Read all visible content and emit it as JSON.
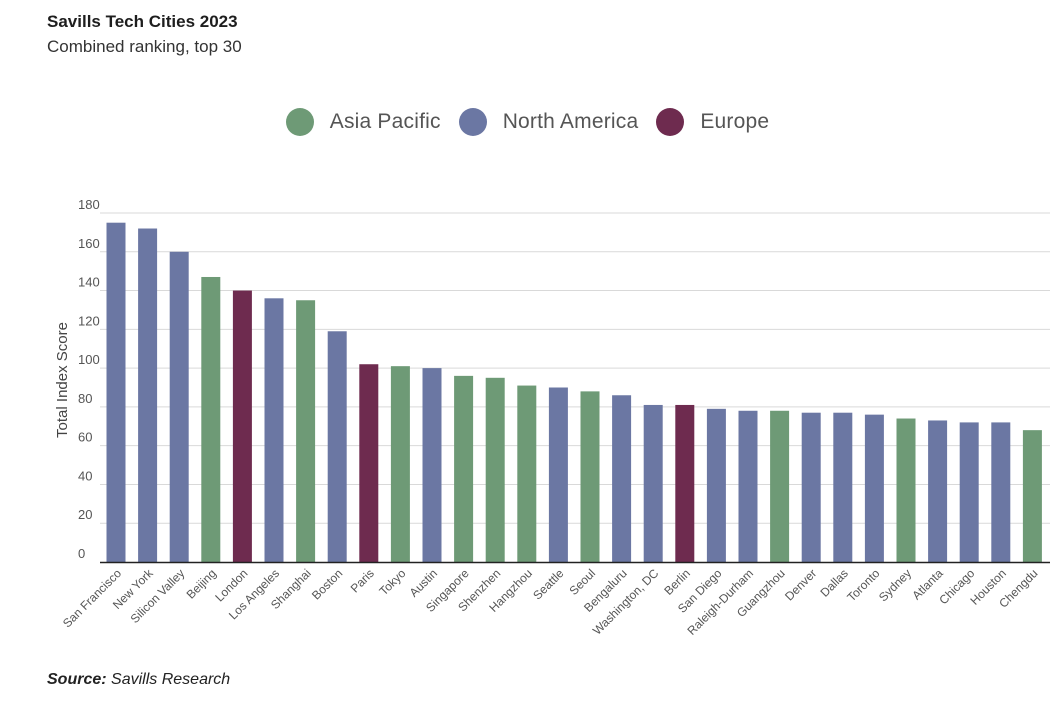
{
  "header": {
    "title": "Savills Tech Cities 2023",
    "subtitle": "Combined ranking, top 30"
  },
  "legend": [
    {
      "label": "Asia Pacific",
      "color": "#6e9a76"
    },
    {
      "label": "North America",
      "color": "#6b77a3"
    },
    {
      "label": "Europe",
      "color": "#6e2b4f"
    }
  ],
  "source": {
    "prefix": "Source:",
    "text": "Savills Research"
  },
  "chart_data": {
    "type": "bar",
    "ylabel": "Total Index Score",
    "xlabel": "",
    "ylim": [
      0,
      180
    ],
    "yticks": [
      0,
      20,
      40,
      60,
      80,
      100,
      120,
      140,
      160,
      180
    ],
    "grid": true,
    "legend_position": "top-center",
    "categories": [
      "San Francisco",
      "New York",
      "Silicon Valley",
      "Beijing",
      "London",
      "Los Angeles",
      "Shanghai",
      "Boston",
      "Paris",
      "Tokyo",
      "Austin",
      "Singapore",
      "Shenzhen",
      "Hangzhou",
      "Seattle",
      "Seoul",
      "Bengaluru",
      "Washington, DC",
      "Berlin",
      "San Diego",
      "Raleigh-Durham",
      "Guangzhou",
      "Denver",
      "Dallas",
      "Toronto",
      "Sydney",
      "Atlanta",
      "Chicago",
      "Houston",
      "Chengdu"
    ],
    "values": [
      175,
      172,
      160,
      147,
      140,
      136,
      135,
      119,
      102,
      101,
      100,
      96,
      95,
      91,
      90,
      88,
      86,
      81,
      81,
      79,
      78,
      78,
      77,
      77,
      76,
      74,
      73,
      72,
      72,
      68
    ],
    "regions": [
      "North America",
      "North America",
      "North America",
      "Asia Pacific",
      "Europe",
      "North America",
      "Asia Pacific",
      "North America",
      "Europe",
      "Asia Pacific",
      "North America",
      "Asia Pacific",
      "Asia Pacific",
      "Asia Pacific",
      "North America",
      "Asia Pacific",
      "North America",
      "North America",
      "Europe",
      "North America",
      "North America",
      "Asia Pacific",
      "North America",
      "North America",
      "North America",
      "Asia Pacific",
      "North America",
      "North America",
      "North America",
      "Asia Pacific"
    ]
  }
}
